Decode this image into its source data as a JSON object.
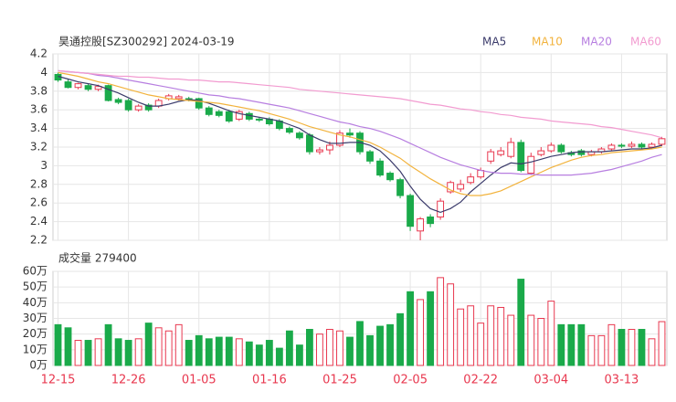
{
  "chart_data": [
    {
      "type": "candlestick",
      "title": "昊通控股[SZ300292] 2024-03-19",
      "up_color": "#e8384f",
      "down_color": "#1aaa4a",
      "open": [
        3.98,
        3.9,
        3.84,
        3.86,
        3.82,
        3.86,
        3.71,
        3.7,
        3.6,
        3.65,
        3.64,
        3.72,
        3.72,
        3.72,
        3.72,
        3.62,
        3.58,
        3.58,
        3.5,
        3.56,
        3.5,
        3.5,
        3.48,
        3.4,
        3.35,
        3.33,
        3.15,
        3.17,
        3.22,
        3.35,
        3.35,
        3.15,
        3.05,
        2.92,
        2.85,
        2.68,
        2.3,
        2.45,
        2.45,
        2.72,
        2.75,
        2.82,
        2.88,
        3.05,
        3.12,
        3.1,
        3.25,
        2.92,
        3.12,
        3.16,
        3.22,
        3.14,
        3.16,
        3.12,
        3.15,
        3.18,
        3.22,
        3.21,
        3.23,
        3.2,
        3.23
      ],
      "high": [
        4.0,
        3.93,
        3.89,
        3.88,
        3.87,
        3.87,
        3.73,
        3.72,
        3.66,
        3.67,
        3.72,
        3.77,
        3.76,
        3.74,
        3.73,
        3.64,
        3.6,
        3.6,
        3.6,
        3.58,
        3.52,
        3.52,
        3.5,
        3.42,
        3.37,
        3.35,
        3.2,
        3.26,
        3.38,
        3.4,
        3.37,
        3.17,
        3.08,
        2.94,
        2.87,
        2.7,
        2.45,
        2.48,
        2.65,
        2.84,
        2.85,
        2.92,
        2.98,
        3.18,
        3.2,
        3.3,
        3.28,
        3.14,
        3.2,
        3.25,
        3.24,
        3.16,
        3.18,
        3.17,
        3.2,
        3.24,
        3.24,
        3.26,
        3.25,
        3.25,
        3.31
      ],
      "low": [
        3.9,
        3.83,
        3.82,
        3.8,
        3.8,
        3.69,
        3.66,
        3.58,
        3.58,
        3.58,
        3.62,
        3.7,
        3.7,
        3.69,
        3.6,
        3.53,
        3.52,
        3.46,
        3.48,
        3.48,
        3.47,
        3.43,
        3.38,
        3.34,
        3.28,
        3.12,
        3.12,
        3.12,
        3.2,
        3.3,
        3.12,
        3.02,
        2.88,
        2.83,
        2.65,
        2.3,
        2.2,
        2.34,
        2.42,
        2.7,
        2.72,
        2.8,
        2.86,
        3.02,
        3.1,
        3.08,
        2.93,
        2.9,
        3.1,
        3.14,
        3.13,
        3.1,
        3.1,
        3.1,
        3.13,
        3.16,
        3.19,
        3.19,
        3.18,
        3.18,
        3.21
      ],
      "close": [
        3.92,
        3.84,
        3.88,
        3.82,
        3.85,
        3.7,
        3.68,
        3.6,
        3.64,
        3.6,
        3.7,
        3.75,
        3.74,
        3.71,
        3.62,
        3.55,
        3.54,
        3.48,
        3.58,
        3.5,
        3.49,
        3.45,
        3.4,
        3.36,
        3.3,
        3.15,
        3.17,
        3.22,
        3.35,
        3.33,
        3.15,
        3.05,
        2.9,
        2.85,
        2.68,
        2.35,
        2.43,
        2.38,
        2.62,
        2.82,
        2.8,
        2.88,
        2.95,
        3.15,
        3.16,
        3.25,
        2.95,
        3.1,
        3.16,
        3.22,
        3.15,
        3.12,
        3.12,
        3.15,
        3.18,
        3.22,
        3.21,
        3.23,
        3.2,
        3.23,
        3.29
      ],
      "series": [
        {
          "name": "MA5",
          "color": "#3b3b6b",
          "values": [
            3.96,
            3.93,
            3.9,
            3.88,
            3.86,
            3.82,
            3.78,
            3.73,
            3.68,
            3.64,
            3.64,
            3.66,
            3.69,
            3.71,
            3.7,
            3.67,
            3.63,
            3.59,
            3.56,
            3.54,
            3.52,
            3.5,
            3.48,
            3.44,
            3.4,
            3.33,
            3.28,
            3.24,
            3.24,
            3.25,
            3.25,
            3.22,
            3.16,
            3.06,
            2.94,
            2.78,
            2.64,
            2.54,
            2.5,
            2.54,
            2.61,
            2.72,
            2.81,
            2.9,
            2.98,
            3.03,
            3.02,
            3.04,
            3.07,
            3.1,
            3.12,
            3.14,
            3.15,
            3.15,
            3.15,
            3.16,
            3.17,
            3.18,
            3.18,
            3.19,
            3.22
          ]
        },
        {
          "name": "MA10",
          "color": "#f2b33d",
          "values": [
            4.0,
            3.98,
            3.96,
            3.93,
            3.9,
            3.88,
            3.85,
            3.82,
            3.79,
            3.76,
            3.74,
            3.72,
            3.71,
            3.7,
            3.69,
            3.68,
            3.67,
            3.65,
            3.63,
            3.61,
            3.59,
            3.56,
            3.53,
            3.5,
            3.46,
            3.42,
            3.39,
            3.36,
            3.33,
            3.31,
            3.28,
            3.25,
            3.2,
            3.14,
            3.08,
            3.0,
            2.93,
            2.86,
            2.8,
            2.74,
            2.7,
            2.68,
            2.68,
            2.7,
            2.73,
            2.78,
            2.83,
            2.88,
            2.93,
            2.98,
            3.02,
            3.06,
            3.09,
            3.11,
            3.12,
            3.14,
            3.15,
            3.16,
            3.17,
            3.18,
            3.2
          ]
        },
        {
          "name": "MA20",
          "color": "#b77ee0",
          "values": [
            4.02,
            4.01,
            4.0,
            3.99,
            3.97,
            3.96,
            3.94,
            3.92,
            3.9,
            3.88,
            3.86,
            3.84,
            3.82,
            3.8,
            3.78,
            3.76,
            3.75,
            3.73,
            3.72,
            3.7,
            3.68,
            3.66,
            3.64,
            3.62,
            3.59,
            3.56,
            3.53,
            3.5,
            3.47,
            3.45,
            3.42,
            3.4,
            3.37,
            3.33,
            3.29,
            3.24,
            3.19,
            3.14,
            3.09,
            3.05,
            3.01,
            2.98,
            2.95,
            2.93,
            2.92,
            2.92,
            2.91,
            2.91,
            2.9,
            2.9,
            2.9,
            2.9,
            2.91,
            2.92,
            2.94,
            2.96,
            2.99,
            3.02,
            3.05,
            3.09,
            3.12
          ]
        },
        {
          "name": "MA60",
          "color": "#f29bd0",
          "values": [
            4.02,
            4.01,
            4.0,
            3.99,
            3.98,
            3.97,
            3.96,
            3.96,
            3.95,
            3.95,
            3.94,
            3.93,
            3.93,
            3.92,
            3.92,
            3.91,
            3.9,
            3.9,
            3.89,
            3.88,
            3.87,
            3.86,
            3.85,
            3.84,
            3.82,
            3.81,
            3.8,
            3.79,
            3.78,
            3.77,
            3.76,
            3.75,
            3.74,
            3.73,
            3.72,
            3.7,
            3.68,
            3.66,
            3.65,
            3.63,
            3.61,
            3.6,
            3.58,
            3.57,
            3.55,
            3.54,
            3.52,
            3.51,
            3.5,
            3.48,
            3.47,
            3.46,
            3.45,
            3.44,
            3.42,
            3.41,
            3.39,
            3.37,
            3.35,
            3.33,
            3.3
          ]
        }
      ],
      "ylim": [
        2.2,
        4.2
      ],
      "yticks": [
        2.2,
        2.4,
        2.6,
        2.8,
        3,
        3.2,
        3.4,
        3.6,
        3.8,
        4,
        4.2
      ],
      "grid": true
    },
    {
      "type": "bar",
      "title": "成交量 279400",
      "categories": [
        "12-15",
        null,
        null,
        null,
        null,
        null,
        null,
        "12-26",
        null,
        null,
        null,
        null,
        null,
        null,
        "01-05",
        null,
        null,
        null,
        null,
        null,
        null,
        "01-16",
        null,
        null,
        null,
        null,
        null,
        null,
        "01-25",
        null,
        null,
        null,
        null,
        null,
        null,
        "02-05",
        null,
        null,
        null,
        null,
        null,
        null,
        "02-22",
        null,
        null,
        null,
        null,
        null,
        null,
        "03-04",
        null,
        null,
        null,
        null,
        null,
        null,
        "03-13",
        null,
        null,
        null,
        null
      ],
      "values": [
        26,
        24,
        16,
        16,
        17,
        26,
        17,
        16,
        17,
        27,
        24,
        22,
        26,
        16,
        19,
        17,
        18,
        18,
        17,
        15,
        13,
        16,
        11,
        22,
        13,
        23,
        20,
        23,
        22,
        18,
        28,
        19,
        25,
        26,
        33,
        47,
        42,
        47,
        56,
        52,
        36,
        38,
        27,
        38,
        37,
        32,
        55,
        32,
        30,
        41,
        26,
        26,
        26,
        19,
        19,
        26,
        23,
        23,
        23,
        17,
        27.94
      ],
      "ylim": [
        0,
        60
      ],
      "yticks": [
        {
          "value": 0,
          "label": "0万"
        },
        {
          "value": 10,
          "label": "10万"
        },
        {
          "value": 20,
          "label": "20万"
        },
        {
          "value": 30,
          "label": "30万"
        },
        {
          "value": 40,
          "label": "40万"
        },
        {
          "value": 50,
          "label": "50万"
        },
        {
          "value": 60,
          "label": "60万"
        }
      ],
      "grid": true
    }
  ]
}
